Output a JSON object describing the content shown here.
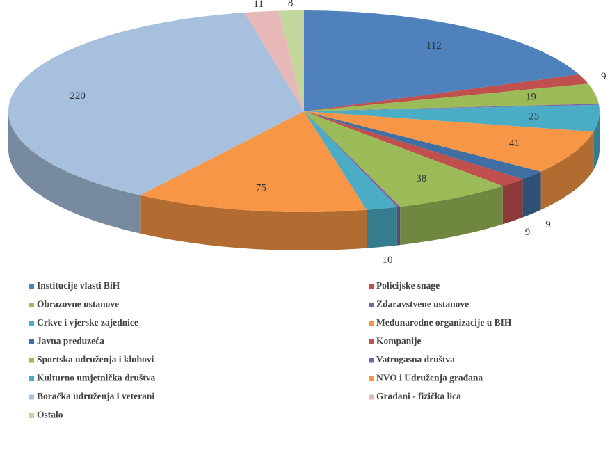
{
  "chart_data": {
    "type": "pie",
    "categories": [
      "Institucije vlasti BiH",
      "Policijske snage",
      "Obrazovne ustanove",
      "Zdaravstvene ustanove",
      "Crkve i vjerske zajednice",
      "Međunarodne organizacije u BIH",
      "Javna preduzeća",
      "Kompanije",
      "Sportska udruženja i klubovi",
      "Vatrogasna društva",
      "Kulturno umjetnička društva",
      "NVO i Udruženja građana",
      "Boračka udruženja i veterani",
      "Građani - fizička lica",
      "Ostalo"
    ],
    "values": [
      112,
      9,
      19,
      1,
      25,
      41,
      9,
      9,
      38,
      1,
      10,
      75,
      220,
      11,
      8
    ],
    "value_labels": [
      "112",
      "9",
      "19",
      null,
      "25",
      "41",
      "9",
      "9",
      "38",
      null,
      "10",
      "75",
      "220",
      "11",
      "8"
    ],
    "colors": [
      "#4f81bd",
      "#c0504d",
      "#9bbb59",
      "#8064a2",
      "#4bacc6",
      "#f79646",
      "#3f6fa3",
      "#c0504d",
      "#9bbb59",
      "#8064a2",
      "#4bacc6",
      "#f79646",
      "#a7c0de",
      "#e6b9b8",
      "#c3d69b"
    ],
    "legend": "bottom"
  }
}
